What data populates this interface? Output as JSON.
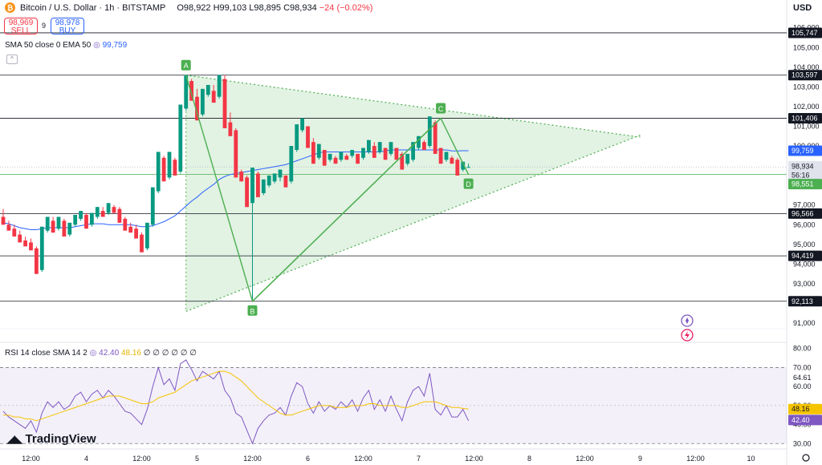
{
  "header": {
    "title": "Bitcoin / U.S. Dollar · 1h · BITSTAMP",
    "open": "O98,922",
    "high": "H99,103",
    "low": "L98,895",
    "close": "C98,934",
    "change": "−24 (−0.02%)",
    "sell_price": "98,969",
    "sell_label": "SELL",
    "spread": "9",
    "buy_price": "98,978",
    "buy_label": "BUY",
    "indicator_label": "SMA 50 close 0 EMA 50",
    "indicator_value": "99,759",
    "currency": "USD"
  },
  "rsi_header": {
    "label": "RSI 14 close SMA 14 2",
    "rsi_value": "42.40",
    "sma_value": "48.16",
    "extras": "∅ ∅ ∅ ∅ ∅ ∅"
  },
  "brand": "TradingView",
  "colors": {
    "up": "#089981",
    "down": "#f23645",
    "ma": "#2962ff",
    "pattern": "#4caf50",
    "rsi": "#7e57c2",
    "rsi_sma": "#f5c400"
  },
  "icons": [
    "bitcoin-icon",
    "eye-icon",
    "rocket-icon",
    "lightning-icon",
    "settings-icon",
    "tradingview-logo-icon"
  ],
  "chart_data": [
    {
      "type": "candlestick",
      "ylim": [
        90800,
        106600
      ],
      "y_ticks": [
        91000,
        92000,
        93000,
        94000,
        95000,
        96000,
        97000,
        98000,
        99000,
        100000,
        101000,
        102000,
        103000,
        104000,
        105000,
        106000
      ],
      "x_ticks": [
        "12:00",
        "4",
        "12:00",
        "5",
        "12:00",
        "6",
        "12:00",
        "7",
        "12:00",
        "8",
        "12:00",
        "9",
        "12:00",
        "10"
      ],
      "x_tick_index": [
        5,
        15,
        25,
        35,
        45,
        55,
        65,
        75,
        85,
        95,
        105,
        115,
        125,
        135
      ],
      "candles": [
        [
          96400,
          96800,
          96100,
          96000
        ],
        [
          96000,
          96200,
          95800,
          95700
        ],
        [
          95800,
          96000,
          95500,
          95400
        ],
        [
          95500,
          95700,
          95200,
          95100
        ],
        [
          95200,
          95400,
          95000,
          94900
        ],
        [
          95100,
          95300,
          94800,
          94700
        ],
        [
          94800,
          94900,
          93600,
          93500
        ],
        [
          93700,
          95800,
          93600,
          95900
        ],
        [
          95700,
          96300,
          95600,
          96400
        ],
        [
          96200,
          96400,
          95700,
          95600
        ],
        [
          95800,
          96300,
          95700,
          96400
        ],
        [
          96200,
          96300,
          95500,
          95400
        ],
        [
          95500,
          96000,
          95400,
          96100
        ],
        [
          96000,
          96400,
          95900,
          96500
        ],
        [
          96300,
          96600,
          96200,
          96700
        ],
        [
          96500,
          96600,
          95900,
          95800
        ],
        [
          96000,
          96500,
          95900,
          96600
        ],
        [
          96400,
          96800,
          96300,
          96900
        ],
        [
          96700,
          96900,
          96500,
          96400
        ],
        [
          96600,
          97000,
          96500,
          97100
        ],
        [
          96900,
          97000,
          96700,
          96600
        ],
        [
          96800,
          96900,
          96200,
          96100
        ],
        [
          96300,
          96400,
          95800,
          95700
        ],
        [
          95900,
          96100,
          95700,
          95600
        ],
        [
          95800,
          96000,
          95400,
          95300
        ],
        [
          95500,
          95600,
          94700,
          94600
        ],
        [
          94800,
          96000,
          94700,
          96100
        ],
        [
          96000,
          97800,
          95900,
          97900
        ],
        [
          97700,
          99600,
          97600,
          99700
        ],
        [
          99400,
          99500,
          98300,
          98200
        ],
        [
          98400,
          99600,
          98300,
          99700
        ],
        [
          99300,
          99400,
          98600,
          98500
        ],
        [
          98700,
          102000,
          98600,
          102100
        ],
        [
          101900,
          103500,
          101800,
          103600
        ],
        [
          103300,
          103400,
          102400,
          102300
        ],
        [
          102500,
          102900,
          101400,
          101300
        ],
        [
          101600,
          102800,
          101500,
          102900
        ],
        [
          102600,
          103000,
          102500,
          103100
        ],
        [
          102800,
          103100,
          102300,
          102200
        ],
        [
          102500,
          103500,
          102400,
          103600
        ],
        [
          103400,
          103600,
          101000,
          100900
        ],
        [
          101200,
          101700,
          100600,
          100500
        ],
        [
          100800,
          100900,
          98500,
          98400
        ],
        [
          98700,
          98800,
          98300,
          98200
        ],
        [
          98400,
          98500,
          97000,
          96900
        ],
        [
          97100,
          98800,
          92100,
          98900
        ],
        [
          98600,
          98700,
          97500,
          97400
        ],
        [
          97600,
          98200,
          97500,
          98300
        ],
        [
          98000,
          98400,
          97900,
          98500
        ],
        [
          98200,
          98500,
          98100,
          98600
        ],
        [
          98400,
          98700,
          98200,
          98800
        ],
        [
          98500,
          98400,
          98000,
          97900
        ],
        [
          98200,
          99900,
          98100,
          100000
        ],
        [
          99800,
          101000,
          99700,
          101100
        ],
        [
          100800,
          101300,
          100700,
          101400
        ],
        [
          101000,
          101000,
          100000,
          99900
        ],
        [
          100200,
          100400,
          99200,
          99100
        ],
        [
          99400,
          100000,
          99300,
          100100
        ],
        [
          99800,
          99700,
          99100,
          99000
        ],
        [
          99300,
          99500,
          99200,
          99600
        ],
        [
          99400,
          99500,
          99200,
          99100
        ],
        [
          99300,
          99600,
          99200,
          99700
        ],
        [
          99500,
          99600,
          99400,
          99300
        ],
        [
          99500,
          99700,
          99400,
          99800
        ],
        [
          99600,
          99600,
          99200,
          99100
        ],
        [
          99400,
          99800,
          99300,
          99900
        ],
        [
          99700,
          100200,
          99600,
          100300
        ],
        [
          100000,
          100200,
          99500,
          99400
        ],
        [
          99700,
          100100,
          99600,
          100200
        ],
        [
          99900,
          99900,
          99400,
          99300
        ],
        [
          99600,
          100100,
          99500,
          100200
        ],
        [
          99900,
          99800,
          99400,
          99300
        ],
        [
          99600,
          99700,
          98900,
          98800
        ],
        [
          99100,
          99500,
          99000,
          99600
        ],
        [
          99300,
          100100,
          99200,
          100200
        ],
        [
          99900,
          100400,
          99800,
          100500
        ],
        [
          100200,
          100300,
          99900,
          99800
        ],
        [
          100000,
          101400,
          99900,
          101500
        ],
        [
          101200,
          101300,
          99700,
          99600
        ],
        [
          99900,
          99900,
          99200,
          99100
        ],
        [
          99300,
          99600,
          99200,
          99700
        ],
        [
          99400,
          99500,
          99200,
          99100
        ],
        [
          99300,
          99400,
          98600,
          98500
        ],
        [
          98800,
          99100,
          98700,
          99200
        ],
        [
          98922,
          99103,
          98895,
          98934
        ]
      ],
      "ma_values": [
        96100,
        96050,
        95950,
        95850,
        95800,
        95750,
        95750,
        95800,
        95850,
        95850,
        95850,
        95850,
        95850,
        95900,
        95950,
        96000,
        96050,
        96050,
        96050,
        96000,
        96000,
        96000,
        96000,
        96000,
        95950,
        95900,
        95900,
        95950,
        96050,
        96150,
        96300,
        96450,
        96700,
        96950,
        97200,
        97400,
        97650,
        97850,
        98050,
        98300,
        98450,
        98550,
        98600,
        98650,
        98700,
        98750,
        98800,
        98850,
        98900,
        98950,
        99000,
        99050,
        99150,
        99250,
        99350,
        99450,
        99550,
        99650,
        99700,
        99700,
        99700,
        99700,
        99700,
        99700,
        99700,
        99700,
        99700,
        99700,
        99700,
        99750,
        99800,
        99800,
        99800,
        99800,
        99800,
        99800,
        99800,
        99800,
        99800,
        99800,
        99800,
        99750,
        99750,
        99759,
        99759
      ],
      "levels": [
        105747,
        103597,
        101406,
        96566,
        94419,
        92113
      ],
      "price_tags": [
        {
          "label": "105,747",
          "kind": "level"
        },
        {
          "label": "103,597",
          "kind": "level"
        },
        {
          "label": "101,406",
          "kind": "level"
        },
        {
          "label": "99,759",
          "kind": "ma"
        },
        {
          "label": "98,934",
          "kind": "last"
        },
        {
          "label": "56:16",
          "kind": "countdown"
        },
        {
          "label": "98,551",
          "kind": "pattern"
        },
        {
          "label": "96,566",
          "kind": "level"
        },
        {
          "label": "94,419",
          "kind": "level"
        },
        {
          "label": "92,113",
          "kind": "level"
        }
      ],
      "pattern_points": [
        {
          "label": "A",
          "i": 33,
          "y": 103597
        },
        {
          "label": "B",
          "i": 45,
          "y": 92113
        },
        {
          "label": "C",
          "i": 79,
          "y": 101406
        },
        {
          "label": "D",
          "i": 84,
          "y": 98551
        }
      ],
      "triangle": {
        "upper": [
          [
            33,
            103597
          ],
          [
            115,
            100450
          ]
        ],
        "lower": [
          [
            33,
            91600
          ],
          [
            115,
            100550
          ]
        ]
      }
    },
    {
      "type": "line",
      "name": "RSI",
      "ylim": [
        28,
        82
      ],
      "y_ticks": [
        30,
        40,
        50,
        60,
        70,
        80
      ],
      "y_tick_labels": [
        "30.00",
        "40.00",
        "50.00",
        "60.00",
        "70.00",
        "80.00"
      ],
      "band": [
        30,
        70
      ],
      "extra_tags": [
        {
          "label": "64.61",
          "y": 64.61
        },
        {
          "label": "48.57",
          "y": 48.57
        }
      ],
      "last_rsi": {
        "label": "42.40",
        "y": 42.4
      },
      "last_sma": {
        "label": "48.16",
        "y": 48.16
      },
      "rsi_values": [
        47,
        44,
        42,
        40,
        38,
        42,
        36,
        46,
        52,
        49,
        52,
        48,
        50,
        55,
        57,
        52,
        56,
        58,
        54,
        58,
        55,
        51,
        47,
        46,
        43,
        40,
        48,
        60,
        70,
        61,
        64,
        58,
        72,
        74,
        69,
        63,
        68,
        66,
        64,
        68,
        58,
        54,
        46,
        44,
        37,
        30,
        38,
        42,
        45,
        46,
        49,
        45,
        55,
        62,
        60,
        51,
        46,
        52,
        47,
        50,
        48,
        52,
        49,
        53,
        47,
        54,
        58,
        48,
        53,
        47,
        55,
        48,
        42,
        52,
        58,
        60,
        55,
        67,
        48,
        45,
        50,
        44,
        44,
        48,
        42
      ],
      "sma_values": [
        45,
        45,
        44,
        44,
        43,
        43,
        42,
        43,
        44,
        45,
        46,
        47,
        48,
        49,
        50,
        51,
        52,
        53,
        54,
        55,
        55,
        55,
        54,
        53,
        52,
        51,
        51,
        52,
        54,
        55,
        56,
        57,
        59,
        61,
        63,
        64,
        65,
        66,
        67,
        68,
        68,
        67,
        65,
        63,
        60,
        57,
        54,
        52,
        50,
        48,
        46,
        45,
        45,
        46,
        47,
        48,
        49,
        50,
        50,
        50,
        49,
        49,
        49,
        50,
        50,
        50,
        51,
        51,
        50,
        50,
        50,
        50,
        49,
        49,
        50,
        51,
        52,
        52,
        52,
        51,
        50,
        49,
        49,
        48.5,
        48.16
      ]
    }
  ]
}
